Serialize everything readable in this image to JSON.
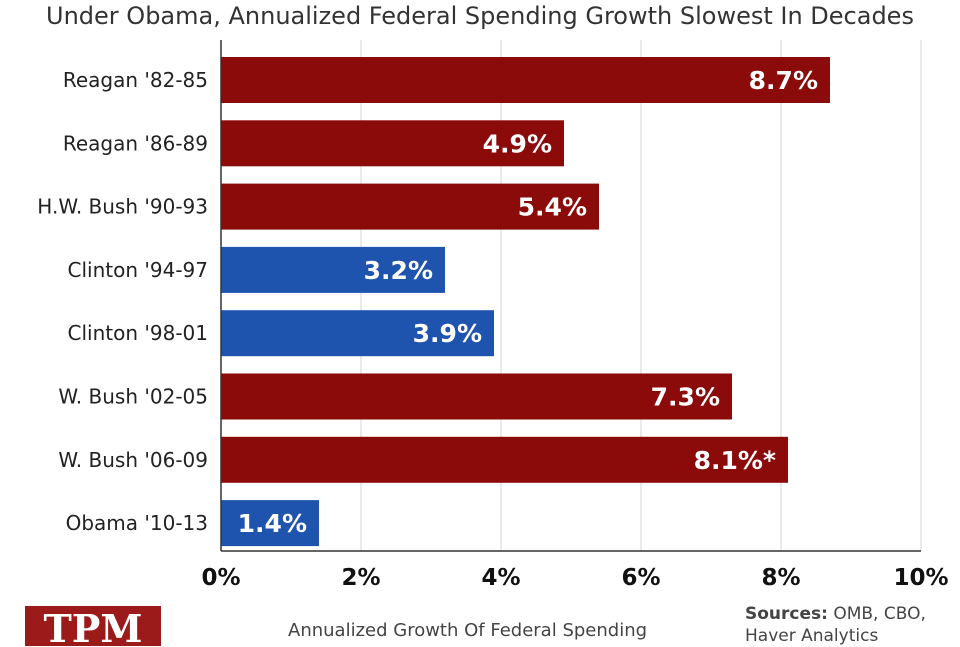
{
  "chart_data": {
    "type": "bar",
    "orientation": "horizontal",
    "title": "Under Obama, Annualized Federal Spending Growth Slowest In Decades",
    "xlabel": "Annualized Growth Of Federal Spending",
    "ylabel": "",
    "xlim": [
      0,
      10
    ],
    "ticks": [
      0,
      2,
      4,
      6,
      8,
      10
    ],
    "tick_labels": [
      "0%",
      "2%",
      "4%",
      "6%",
      "8%",
      "10%"
    ],
    "grid": "vertical",
    "categories": [
      "Reagan '82-85",
      "Reagan '86-89",
      "H.W. Bush '90-93",
      "Clinton '94-97",
      "Clinton '98-01",
      "W. Bush '02-05",
      "W. Bush '06-09",
      "Obama '10-13"
    ],
    "values": [
      8.7,
      4.9,
      5.4,
      3.2,
      3.9,
      7.3,
      8.1,
      1.4
    ],
    "value_labels": [
      "8.7%",
      "4.9%",
      "5.4%",
      "3.2%",
      "3.9%",
      "7.3%",
      "8.1%*",
      "1.4%"
    ],
    "party": [
      "R",
      "R",
      "R",
      "D",
      "D",
      "R",
      "R",
      "D"
    ],
    "colors": {
      "R": "#8b0a0a",
      "D": "#1f54ae"
    }
  },
  "sources_label": "Sources:",
  "sources_text": "OMB, CBO, Haver Analytics",
  "logo_text": "TPM"
}
